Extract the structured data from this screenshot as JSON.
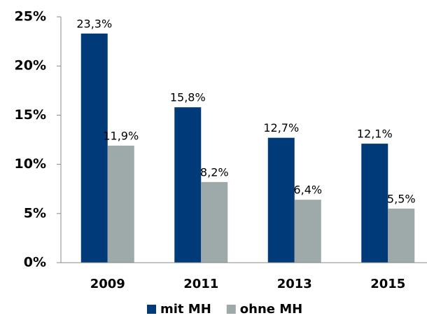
{
  "chart_data": {
    "type": "bar",
    "categories": [
      "2009",
      "2011",
      "2013",
      "2015"
    ],
    "series": [
      {
        "name": "mit MH",
        "color": "#003a78",
        "values": [
          23.3,
          15.8,
          12.7,
          12.1
        ],
        "value_labels": [
          "23,3%",
          "15,8%",
          "12,7%",
          "12,1%"
        ]
      },
      {
        "name": "ohne MH",
        "color": "#9eaaaa",
        "values": [
          11.9,
          8.2,
          6.4,
          5.5
        ],
        "value_labels": [
          "11,9%",
          "8,2%",
          "6,4%",
          "5,5%"
        ]
      }
    ],
    "ylim": [
      0,
      25
    ],
    "yticks": [
      {
        "value": 0,
        "label": "0%"
      },
      {
        "value": 5,
        "label": "5%"
      },
      {
        "value": 10,
        "label": "10%"
      },
      {
        "value": 15,
        "label": "15%"
      },
      {
        "value": 20,
        "label": "20%"
      },
      {
        "value": 25,
        "label": "25%"
      }
    ],
    "legend": "bottom"
  }
}
